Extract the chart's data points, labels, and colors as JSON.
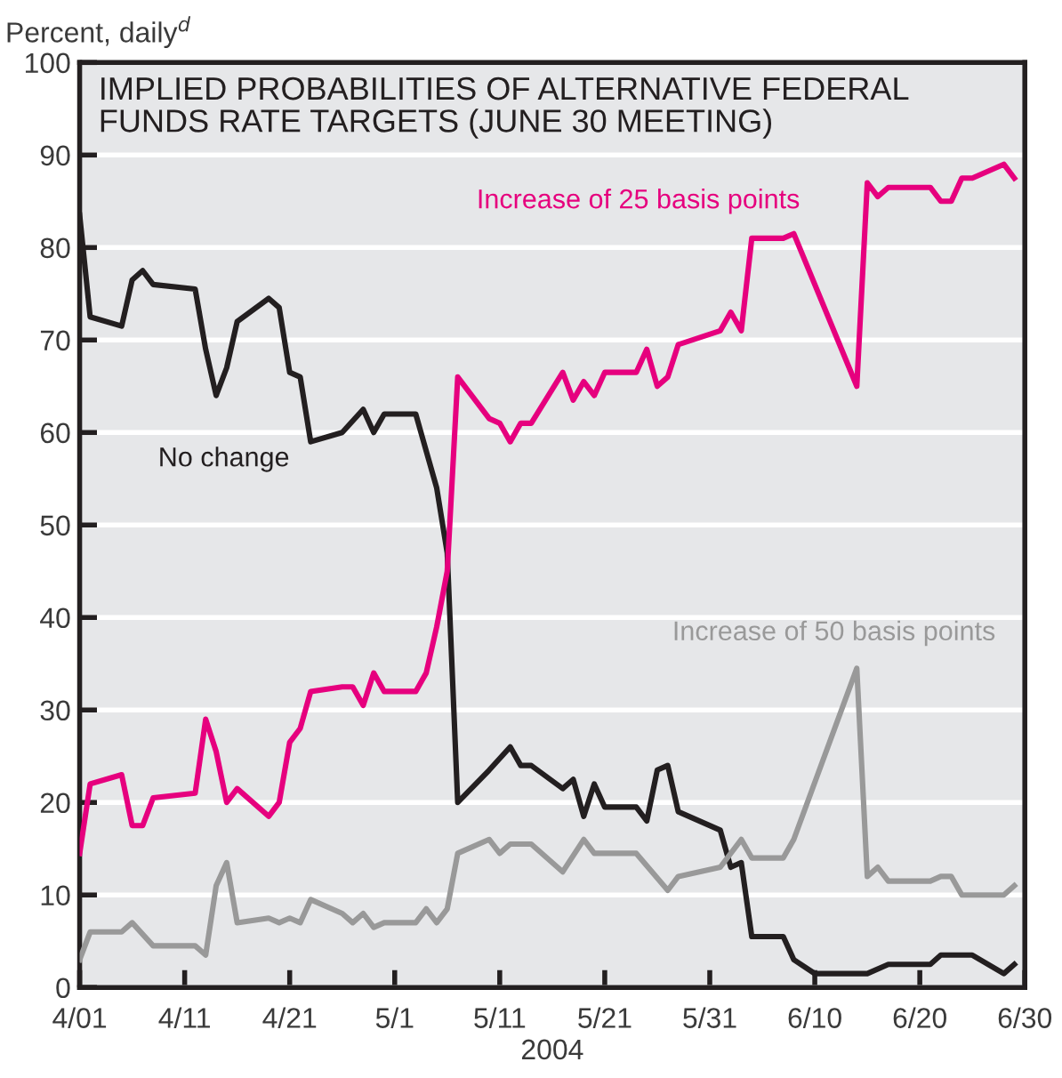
{
  "chart_data": {
    "type": "line",
    "title": "IMPLIED PROBABILITIES OF ALTERNATIVE FEDERAL\nFUNDS RATE TARGETS (JUNE 30 MEETING)",
    "ylabel": "Percent, daily$^{d}$",
    "xlabel": "2004",
    "xlim": [
      "2004-04-01",
      "2004-06-30"
    ],
    "xticks": [
      {
        "value": "2004-04-01",
        "label": "4/01"
      },
      {
        "value": "2004-04-11",
        "label": "4/11"
      },
      {
        "value": "2004-04-21",
        "label": "4/21"
      },
      {
        "value": "2004-05-01",
        "label": "5/1"
      },
      {
        "value": "2004-05-11",
        "label": "5/11"
      },
      {
        "value": "2004-05-21",
        "label": "5/21"
      },
      {
        "value": "2004-05-31",
        "label": "5/31"
      },
      {
        "value": "2004-06-10",
        "label": "6/10"
      },
      {
        "value": "2004-06-20",
        "label": "6/20"
      },
      {
        "value": "2004-06-30",
        "label": "6/30"
      }
    ],
    "ylim": [
      0,
      100
    ],
    "yticks": [
      0,
      10,
      20,
      30,
      40,
      50,
      60,
      70,
      80,
      90,
      100
    ],
    "grid": "y",
    "legend": false,
    "marker": "none",
    "line_style": "solid",
    "series": [
      {
        "name": "No change",
        "color": "#231f20",
        "x": [
          "2004-04-01",
          "2004-04-02",
          "2004-04-05",
          "2004-04-06",
          "2004-04-07",
          "2004-04-08",
          "2004-04-12",
          "2004-04-13",
          "2004-04-14",
          "2004-04-15",
          "2004-04-16",
          "2004-04-19",
          "2004-04-20",
          "2004-04-21",
          "2004-04-22",
          "2004-04-23",
          "2004-04-26",
          "2004-04-28",
          "2004-04-29",
          "2004-04-30",
          "2004-05-03",
          "2004-05-05",
          "2004-05-06",
          "2004-05-07",
          "2004-05-10",
          "2004-05-12",
          "2004-05-13",
          "2004-05-14",
          "2004-05-17",
          "2004-05-18",
          "2004-05-19",
          "2004-05-20",
          "2004-05-21",
          "2004-05-24",
          "2004-05-25",
          "2004-05-26",
          "2004-05-27",
          "2004-05-28",
          "2004-06-01",
          "2004-06-02",
          "2004-06-03",
          "2004-06-04",
          "2004-06-07",
          "2004-06-08",
          "2004-06-10",
          "2004-06-15",
          "2004-06-17",
          "2004-06-21",
          "2004-06-22",
          "2004-06-25",
          "2004-06-28",
          "2004-06-29"
        ],
        "values": [
          83.5,
          72.5,
          71.5,
          76.5,
          77.5,
          76,
          75.5,
          69,
          64,
          67,
          72,
          74.5,
          73.5,
          66.5,
          66,
          59,
          60,
          62.5,
          60,
          62,
          62,
          54,
          47,
          20,
          23.5,
          26,
          24,
          24,
          21.5,
          22.5,
          18.5,
          22,
          19.5,
          19.5,
          18,
          23.5,
          24,
          19,
          17,
          13,
          13.5,
          5.5,
          5.5,
          3,
          1.5,
          1.5,
          2.5,
          2.5,
          3.5,
          3.5,
          1.5,
          2.5
        ]
      },
      {
        "name": "Increase of 25 basis points",
        "color": "#e6007e",
        "x": [
          "2004-04-01",
          "2004-04-02",
          "2004-04-05",
          "2004-04-06",
          "2004-04-07",
          "2004-04-08",
          "2004-04-12",
          "2004-04-13",
          "2004-04-14",
          "2004-04-15",
          "2004-04-16",
          "2004-04-19",
          "2004-04-20",
          "2004-04-21",
          "2004-04-22",
          "2004-04-23",
          "2004-04-26",
          "2004-04-27",
          "2004-04-28",
          "2004-04-29",
          "2004-04-30",
          "2004-05-03",
          "2004-05-04",
          "2004-05-05",
          "2004-05-06",
          "2004-05-07",
          "2004-05-10",
          "2004-05-11",
          "2004-05-12",
          "2004-05-13",
          "2004-05-14",
          "2004-05-17",
          "2004-05-18",
          "2004-05-19",
          "2004-05-20",
          "2004-05-21",
          "2004-05-24",
          "2004-05-25",
          "2004-05-26",
          "2004-05-27",
          "2004-05-28",
          "2004-06-01",
          "2004-06-02",
          "2004-06-03",
          "2004-06-04",
          "2004-06-07",
          "2004-06-08",
          "2004-06-14",
          "2004-06-15",
          "2004-06-16",
          "2004-06-17",
          "2004-06-21",
          "2004-06-22",
          "2004-06-23",
          "2004-06-24",
          "2004-06-25",
          "2004-06-28",
          "2004-06-29"
        ],
        "values": [
          14.5,
          22,
          23,
          17.5,
          17.5,
          20.5,
          21,
          29,
          25.5,
          20,
          21.5,
          18.5,
          20,
          26.5,
          28,
          32,
          32.5,
          32.5,
          30.5,
          34,
          32,
          32,
          34,
          39,
          45,
          66,
          61.5,
          61,
          59,
          61,
          61,
          66.5,
          63.5,
          65.5,
          64,
          66.5,
          66.5,
          69,
          65,
          66,
          69.5,
          71,
          73,
          71,
          81,
          81,
          81.5,
          65,
          87,
          85.5,
          86.5,
          86.5,
          85,
          85,
          87.5,
          87.5,
          89,
          87.5
        ]
      },
      {
        "name": "Increase of 50 basis points",
        "color": "#999999",
        "x": [
          "2004-04-01",
          "2004-04-02",
          "2004-04-05",
          "2004-04-06",
          "2004-04-08",
          "2004-04-12",
          "2004-04-13",
          "2004-04-14",
          "2004-04-15",
          "2004-04-16",
          "2004-04-19",
          "2004-04-20",
          "2004-04-21",
          "2004-04-22",
          "2004-04-23",
          "2004-04-26",
          "2004-04-27",
          "2004-04-28",
          "2004-04-29",
          "2004-04-30",
          "2004-05-03",
          "2004-05-04",
          "2004-05-05",
          "2004-05-06",
          "2004-05-07",
          "2004-05-10",
          "2004-05-11",
          "2004-05-12",
          "2004-05-14",
          "2004-05-17",
          "2004-05-19",
          "2004-05-20",
          "2004-05-24",
          "2004-05-27",
          "2004-05-28",
          "2004-06-01",
          "2004-06-03",
          "2004-06-04",
          "2004-06-07",
          "2004-06-08",
          "2004-06-14",
          "2004-06-15",
          "2004-06-16",
          "2004-06-17",
          "2004-06-21",
          "2004-06-22",
          "2004-06-23",
          "2004-06-24",
          "2004-06-28",
          "2004-06-29"
        ],
        "values": [
          3,
          6,
          6,
          7,
          4.5,
          4.5,
          3.5,
          11,
          13.5,
          7,
          7.5,
          7,
          7.5,
          7,
          9.5,
          8,
          7,
          8,
          6.5,
          7,
          7,
          8.5,
          7,
          8.5,
          14.5,
          16,
          14.5,
          15.5,
          15.5,
          12.5,
          16,
          14.5,
          14.5,
          10.5,
          12,
          13,
          16,
          14,
          14,
          16,
          34.5,
          12,
          13,
          11.5,
          11.5,
          12,
          12,
          10,
          10,
          11
        ]
      }
    ]
  }
}
